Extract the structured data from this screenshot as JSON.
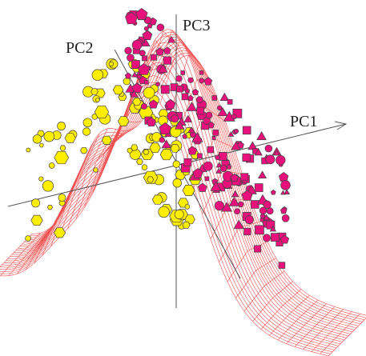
{
  "axes": {
    "pc1": "PC1",
    "pc2": "PC2",
    "pc3": "PC3"
  }
}
